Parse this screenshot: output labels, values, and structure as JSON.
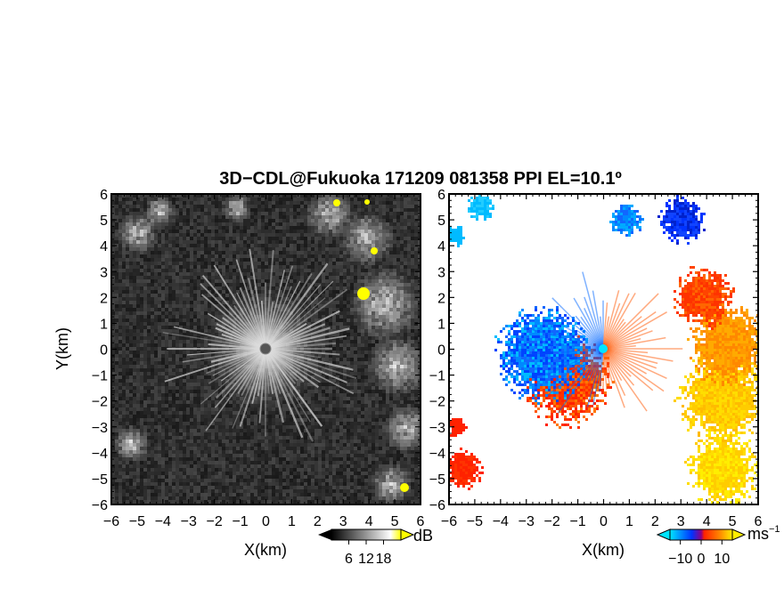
{
  "chart_data": [
    {
      "type": "heatmap",
      "panel": "reflectivity",
      "title": "3D−CDL@Fukuoka 171209 081358 PPI EL=10.1º",
      "xlabel": "X(km)",
      "ylabel": "Y(km)",
      "xlim": [
        -6,
        6
      ],
      "ylim": [
        -6,
        6
      ],
      "x_ticks": [
        "−6",
        "−5",
        "−4",
        "−3",
        "−2",
        "−1",
        "0",
        "1",
        "2",
        "3",
        "4",
        "5",
        "6"
      ],
      "y_ticks": [
        "6",
        "5",
        "4",
        "3",
        "2",
        "1",
        "0",
        "−1",
        "−2",
        "−3",
        "−4",
        "−5",
        "−6"
      ],
      "colorbar": {
        "unit": "dB",
        "ticks": [
          "6",
          "12",
          "18"
        ],
        "tick_values": [
          6,
          12,
          18
        ],
        "range": [
          0,
          24
        ],
        "colors": [
          "#000000",
          "#ffffff",
          "#ffff00"
        ]
      },
      "background_color": "#2a2a2a"
    },
    {
      "type": "heatmap",
      "panel": "doppler-velocity",
      "xlabel": "X(km)",
      "xlim": [
        -6,
        6
      ],
      "ylim": [
        -6,
        6
      ],
      "x_ticks": [
        "−6",
        "−5",
        "−4",
        "−3",
        "−2",
        "−1",
        "0",
        "1",
        "2",
        "3",
        "4",
        "5",
        "6"
      ],
      "y_ticks": [
        "6",
        "5",
        "4",
        "3",
        "2",
        "1",
        "0",
        "−1",
        "−2",
        "−3",
        "−4",
        "−5",
        "−6"
      ],
      "colorbar": {
        "unit": "ms",
        "unit_exponent": "−1",
        "ticks": [
          "−10",
          "0",
          "10"
        ],
        "tick_values": [
          -10,
          0,
          10
        ],
        "range": [
          -15,
          15
        ],
        "colors": [
          "#00e5ff",
          "#0033ff",
          "#ff2200",
          "#ff8800",
          "#ffee00"
        ]
      },
      "background_color": "#ffffff"
    }
  ]
}
